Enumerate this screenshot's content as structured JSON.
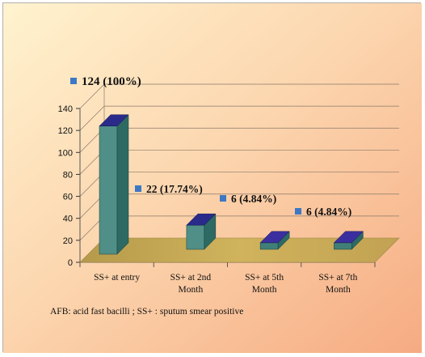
{
  "chart_data": {
    "type": "bar",
    "style": "3d",
    "categories": [
      "SS+ at entry",
      "SS+ at 2nd Month",
      "SS+ at 5th Month",
      "SS+ at 7th Month"
    ],
    "category_lines": [
      [
        "SS+ at entry"
      ],
      [
        "SS+ at 2nd",
        "Month"
      ],
      [
        "SS+ at 5th",
        "Month"
      ],
      [
        "SS+ at 7th",
        "Month"
      ]
    ],
    "values": [
      124,
      22,
      6,
      6
    ],
    "data_labels": [
      "124 (100%)",
      "22 (17.74%)",
      "6 (4.84%)",
      "6 (4.84%)"
    ],
    "ylim": [
      0,
      140
    ],
    "yticks": [
      "0",
      "20",
      "40",
      "60",
      "80",
      "100",
      "120",
      "140"
    ],
    "grid": true,
    "legend": "none",
    "footnote": "AFB: acid fast bacilli ; SS+ : sputum smear positive",
    "colors": {
      "bar_front": "#4f8f87",
      "bar_side": "#2d6a63",
      "bar_top": "#2a2a8a",
      "bar_front_small": "#3f7f78",
      "bar_top_small": "#3b2fa0",
      "floor": "#c9aa5a",
      "marker": "#3d78c4"
    }
  }
}
